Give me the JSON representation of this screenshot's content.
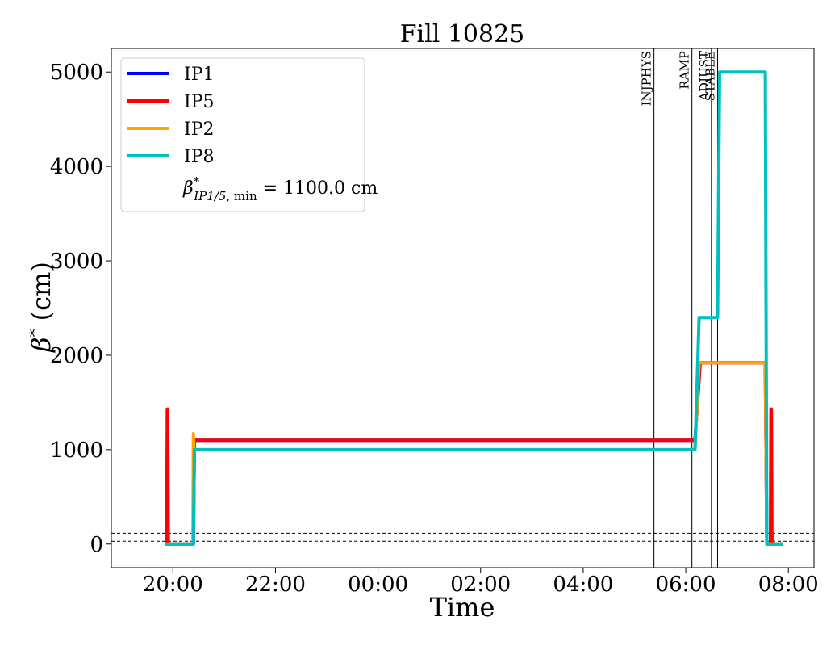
{
  "chart_data": {
    "type": "line",
    "title": "Fill 10825",
    "xlabel": "Time",
    "ylabel_symbol": "β",
    "ylabel_sup": "*",
    "ylabel_unit": "(cm)",
    "x_unit": "hours since 00:00 on the day of the fill (negative = previous evening)",
    "xlim": [
      -5.2,
      8.5
    ],
    "ylim": [
      -250,
      5250
    ],
    "x_ticks": [
      {
        "value": -4,
        "label": "20:00"
      },
      {
        "value": -2,
        "label": "22:00"
      },
      {
        "value": 0,
        "label": "00:00"
      },
      {
        "value": 2,
        "label": "02:00"
      },
      {
        "value": 4,
        "label": "04:00"
      },
      {
        "value": 6,
        "label": "06:00"
      },
      {
        "value": 8,
        "label": "08:00"
      }
    ],
    "y_ticks": [
      {
        "value": 0,
        "label": "0"
      },
      {
        "value": 1000,
        "label": "1000"
      },
      {
        "value": 2000,
        "label": "2000"
      },
      {
        "value": 3000,
        "label": "3000"
      },
      {
        "value": 4000,
        "label": "4000"
      },
      {
        "value": 5000,
        "label": "5000"
      }
    ],
    "reference_lines": [
      30,
      115
    ],
    "phases": [
      {
        "name": "INJPHYS",
        "x": 5.38
      },
      {
        "name": "RAMP",
        "x": 6.12
      },
      {
        "name": "ADJUST",
        "x": 6.5
      },
      {
        "name": "STABLE",
        "x": 6.62
      }
    ],
    "series": [
      {
        "name": "IP1",
        "color": "#0000ff",
        "points": [
          [
            -4.15,
            0
          ],
          [
            -3.6,
            0
          ],
          [
            -3.58,
            1100
          ],
          [
            6.18,
            1100
          ],
          [
            6.28,
            1920
          ],
          [
            7.55,
            1920
          ],
          [
            7.58,
            0
          ],
          [
            7.9,
            0
          ]
        ]
      },
      {
        "name": "IP5",
        "color": "#ff0000",
        "points": [
          [
            -4.15,
            0
          ],
          [
            -4.12,
            0
          ],
          [
            -4.11,
            1430
          ],
          [
            -4.1,
            1430
          ],
          [
            -4.09,
            0
          ],
          [
            -3.6,
            0
          ],
          [
            -3.58,
            1100
          ],
          [
            6.18,
            1100
          ],
          [
            6.28,
            1920
          ],
          [
            7.55,
            1920
          ],
          [
            7.58,
            0
          ],
          [
            7.65,
            0
          ],
          [
            7.66,
            1430
          ],
          [
            7.67,
            1430
          ],
          [
            7.68,
            0
          ],
          [
            7.9,
            0
          ]
        ]
      },
      {
        "name": "IP2",
        "color": "#ffa500",
        "points": [
          [
            -4.15,
            0
          ],
          [
            -3.61,
            0
          ],
          [
            -3.6,
            1170
          ],
          [
            -3.59,
            1000
          ],
          [
            6.18,
            1000
          ],
          [
            6.26,
            1920
          ],
          [
            7.55,
            1920
          ],
          [
            7.58,
            0
          ],
          [
            7.9,
            0
          ]
        ]
      },
      {
        "name": "IP8",
        "color": "#00bfbf",
        "points": [
          [
            -4.15,
            0
          ],
          [
            -3.6,
            0
          ],
          [
            -3.58,
            1000
          ],
          [
            6.18,
            1000
          ],
          [
            6.26,
            2400
          ],
          [
            6.62,
            2400
          ],
          [
            6.66,
            5000
          ],
          [
            7.55,
            5000
          ],
          [
            7.58,
            0
          ],
          [
            7.9,
            0
          ]
        ]
      }
    ],
    "legend": {
      "position": "top-left",
      "entries": [
        "IP1",
        "IP5",
        "IP2",
        "IP8"
      ],
      "note": {
        "beta": "β",
        "sup": "*",
        "sub_italic": "IP1/5",
        "sub_rest": ", min",
        "value": " = 1100.0 cm"
      }
    }
  }
}
